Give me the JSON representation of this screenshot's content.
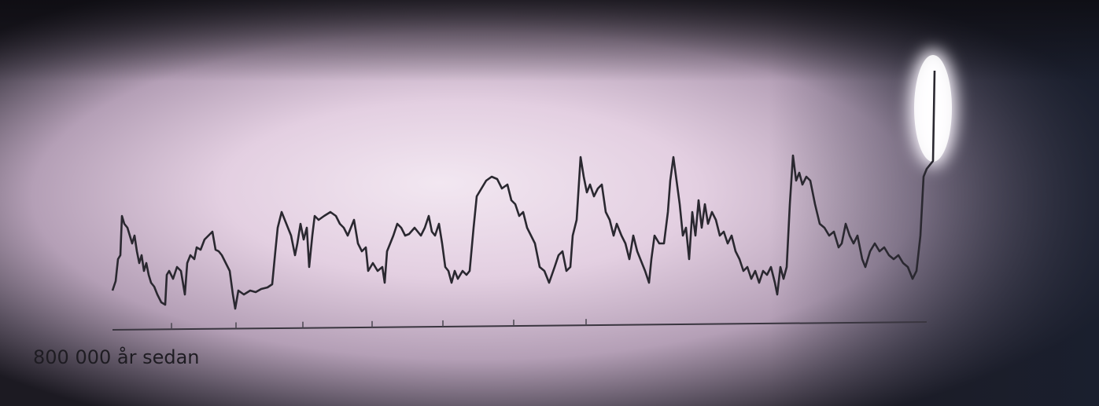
{
  "chart_data": {
    "type": "line",
    "x_label": "800 000 år sedan",
    "color": "#2a2830",
    "xlim": [
      0,
      1045
    ],
    "ylim": [
      0,
      310
    ],
    "xticks": [
      75,
      157,
      242,
      330,
      420,
      510,
      602
    ],
    "x": [
      0,
      4,
      7,
      10,
      12,
      15,
      19,
      22,
      25,
      28,
      31,
      34,
      37,
      40,
      43,
      46,
      49,
      53,
      57,
      62,
      67,
      69,
      72,
      77,
      82,
      87,
      92,
      95,
      99,
      104,
      107,
      112,
      117,
      122,
      127,
      131,
      135,
      139,
      144,
      149,
      153,
      156,
      160,
      167,
      175,
      182,
      189,
      197,
      203,
      207,
      210,
      215,
      221,
      227,
      232,
      235,
      239,
      243,
      247,
      250,
      254,
      257,
      262,
      269,
      277,
      284,
      289,
      294,
      299,
      303,
      307,
      312,
      317,
      322,
      325,
      331,
      337,
      343,
      346,
      349,
      353,
      357,
      362,
      367,
      372,
      377,
      384,
      392,
      397,
      402,
      406,
      410,
      415,
      419,
      423,
      427,
      431,
      435,
      439,
      445,
      450,
      454,
      459,
      463,
      469,
      475,
      482,
      489,
      495,
      502,
      507,
      512,
      517,
      522,
      527,
      532,
      537,
      543,
      549,
      555,
      562,
      567,
      572,
      577,
      582,
      585,
      590,
      595,
      599,
      603,
      607,
      612,
      617,
      622,
      627,
      632,
      637,
      641,
      647,
      652,
      657,
      662,
      667,
      673,
      677,
      682,
      685,
      689,
      695,
      701,
      706,
      709,
      713,
      717,
      721,
      725,
      729,
      733,
      737,
      741,
      745,
      749,
      753,
      757,
      762,
      767,
      772,
      777,
      782,
      787,
      792,
      797,
      802,
      807,
      812,
      817,
      822,
      827,
      832,
      837,
      842,
      845,
      849,
      853,
      857,
      861,
      865,
      869,
      873,
      877,
      882,
      887,
      893,
      899,
      905,
      911,
      917,
      923,
      927,
      932,
      937,
      942,
      947,
      953,
      957,
      963,
      969,
      975,
      981,
      987,
      993,
      999,
      1005,
      1011,
      1017,
      1022,
      1027,
      1031,
      1035,
      1039,
      1043,
      1045
    ],
    "values": [
      30,
      42,
      70,
      75,
      125,
      115,
      110,
      100,
      90,
      100,
      80,
      65,
      75,
      55,
      65,
      50,
      40,
      35,
      25,
      15,
      12,
      50,
      55,
      45,
      60,
      55,
      25,
      65,
      75,
      70,
      85,
      82,
      95,
      100,
      105,
      82,
      80,
      75,
      65,
      55,
      25,
      7,
      30,
      25,
      30,
      28,
      32,
      34,
      38,
      80,
      110,
      130,
      115,
      100,
      75,
      90,
      115,
      95,
      110,
      60,
      100,
      125,
      120,
      125,
      130,
      125,
      115,
      110,
      100,
      110,
      120,
      90,
      80,
      85,
      55,
      65,
      55,
      60,
      40,
      80,
      90,
      100,
      115,
      110,
      100,
      102,
      110,
      100,
      110,
      125,
      105,
      100,
      115,
      90,
      60,
      55,
      40,
      55,
      45,
      55,
      50,
      55,
      110,
      150,
      160,
      170,
      175,
      172,
      160,
      165,
      145,
      140,
      125,
      130,
      110,
      100,
      90,
      60,
      55,
      40,
      60,
      75,
      80,
      55,
      60,
      100,
      120,
      200,
      175,
      155,
      165,
      150,
      160,
      165,
      130,
      120,
      100,
      115,
      100,
      90,
      70,
      100,
      80,
      65,
      55,
      40,
      70,
      100,
      90,
      90,
      130,
      170,
      200,
      170,
      140,
      100,
      110,
      70,
      130,
      100,
      145,
      110,
      140,
      115,
      130,
      120,
      100,
      105,
      90,
      100,
      80,
      70,
      55,
      60,
      45,
      55,
      40,
      55,
      50,
      60,
      40,
      25,
      60,
      45,
      60,
      140,
      202,
      170,
      180,
      165,
      175,
      170,
      140,
      115,
      110,
      100,
      105,
      85,
      90,
      115,
      100,
      90,
      100,
      70,
      60,
      80,
      90,
      80,
      85,
      75,
      70,
      75,
      65,
      60,
      45,
      55,
      100,
      175,
      185,
      190,
      195,
      310
    ]
  }
}
